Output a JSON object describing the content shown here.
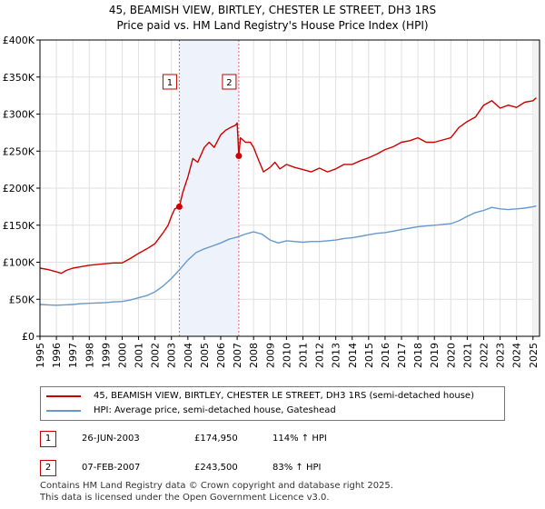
{
  "chart_data": {
    "type": "line",
    "title": "45, BEAMISH VIEW, BIRTLEY, CHESTER LE STREET, DH3 1RS",
    "subtitle": "Price paid vs. HM Land Registry's House Price Index (HPI)",
    "xlim": [
      1995,
      2025.4
    ],
    "ylim": [
      0,
      400000
    ],
    "yticks": [
      0,
      50000,
      100000,
      150000,
      200000,
      250000,
      300000,
      350000,
      400000
    ],
    "ytick_labels": [
      "£0",
      "£50K",
      "£100K",
      "£150K",
      "£200K",
      "£250K",
      "£300K",
      "£350K",
      "£400K"
    ],
    "xticks": [
      "1995",
      "1996",
      "1997",
      "1998",
      "1999",
      "2000",
      "2001",
      "2002",
      "2003",
      "2004",
      "2005",
      "2006",
      "2007",
      "2008",
      "2009",
      "2010",
      "2011",
      "2012",
      "2013",
      "2014",
      "2015",
      "2016",
      "2017",
      "2018",
      "2019",
      "2020",
      "2021",
      "2022",
      "2023",
      "2024",
      "2025"
    ],
    "grid": true,
    "series": [
      {
        "name": "45, BEAMISH VIEW, BIRTLEY, CHESTER LE STREET, DH3 1RS (semi-detached house)",
        "color": "#cc0000",
        "x": [
          1995.0,
          1995.5,
          1996.0,
          1996.3,
          1996.6,
          1997.0,
          1997.5,
          1998.0,
          1998.5,
          1999.0,
          1999.5,
          2000.0,
          2000.5,
          2001.0,
          2001.5,
          2002.0,
          2002.5,
          2002.8,
          2003.0,
          2003.2,
          2003.48,
          2003.7,
          2004.0,
          2004.3,
          2004.6,
          2005.0,
          2005.3,
          2005.6,
          2006.0,
          2006.3,
          2006.6,
          2006.9,
          2007.0,
          2007.1,
          2007.2,
          2007.5,
          2007.8,
          2008.0,
          2008.3,
          2008.6,
          2009.0,
          2009.3,
          2009.6,
          2010.0,
          2010.5,
          2011.0,
          2011.5,
          2012.0,
          2012.5,
          2013.0,
          2013.5,
          2014.0,
          2014.5,
          2015.0,
          2015.5,
          2016.0,
          2016.5,
          2017.0,
          2017.5,
          2018.0,
          2018.5,
          2019.0,
          2019.5,
          2020.0,
          2020.5,
          2021.0,
          2021.5,
          2022.0,
          2022.5,
          2023.0,
          2023.5,
          2024.0,
          2024.5,
          2025.0,
          2025.2
        ],
        "values": [
          92000,
          90000,
          87000,
          85000,
          89000,
          92000,
          94000,
          96000,
          97000,
          98000,
          99000,
          99000,
          105000,
          112000,
          118000,
          125000,
          140000,
          150000,
          162000,
          172000,
          174950,
          195000,
          215000,
          240000,
          235000,
          255000,
          262000,
          255000,
          272000,
          278000,
          282000,
          285000,
          288000,
          243500,
          268000,
          262000,
          262000,
          255000,
          238000,
          222000,
          228000,
          235000,
          226000,
          232000,
          228000,
          225000,
          222000,
          227000,
          222000,
          226000,
          232000,
          232000,
          237000,
          241000,
          246000,
          252000,
          256000,
          262000,
          264000,
          268000,
          262000,
          262000,
          265000,
          268000,
          282000,
          290000,
          296000,
          312000,
          318000,
          308000,
          312000,
          309000,
          316000,
          318000,
          322000
        ]
      },
      {
        "name": "HPI: Average price, semi-detached house, Gateshead",
        "color": "#6699cc",
        "x": [
          1995.0,
          1995.5,
          1996.0,
          1996.5,
          1997.0,
          1997.5,
          1998.0,
          1998.5,
          1999.0,
          1999.5,
          2000.0,
          2000.5,
          2001.0,
          2001.5,
          2002.0,
          2002.5,
          2003.0,
          2003.5,
          2004.0,
          2004.5,
          2005.0,
          2005.5,
          2006.0,
          2006.5,
          2007.0,
          2007.5,
          2008.0,
          2008.5,
          2009.0,
          2009.5,
          2010.0,
          2010.5,
          2011.0,
          2011.5,
          2012.0,
          2012.5,
          2013.0,
          2013.5,
          2014.0,
          2014.5,
          2015.0,
          2015.5,
          2016.0,
          2016.5,
          2017.0,
          2017.5,
          2018.0,
          2018.5,
          2019.0,
          2019.5,
          2020.0,
          2020.5,
          2021.0,
          2021.5,
          2022.0,
          2022.5,
          2023.0,
          2023.5,
          2024.0,
          2024.5,
          2025.0,
          2025.2
        ],
        "values": [
          43000,
          42500,
          42000,
          42500,
          43000,
          44000,
          44500,
          45000,
          45500,
          46500,
          47000,
          49000,
          52000,
          55000,
          60000,
          68000,
          78000,
          90000,
          103000,
          113000,
          118000,
          122000,
          126000,
          131000,
          134000,
          138000,
          141000,
          138000,
          130000,
          126000,
          129000,
          128000,
          127000,
          128000,
          128000,
          129000,
          130000,
          132000,
          133000,
          135000,
          137000,
          139000,
          140000,
          142000,
          144000,
          146000,
          148000,
          149000,
          150000,
          151000,
          152000,
          156000,
          162000,
          167000,
          170000,
          174000,
          172000,
          171000,
          172000,
          173000,
          175000,
          176000
        ]
      }
    ],
    "markers": [
      {
        "label": "1",
        "x": 2003.48,
        "y": 174950
      },
      {
        "label": "2",
        "x": 2007.1,
        "y": 243500
      }
    ]
  },
  "legend": {
    "property_label": "45, BEAMISH VIEW, BIRTLEY, CHESTER LE STREET, DH3 1RS (semi-detached house)",
    "hpi_label": "HPI: Average price, semi-detached house, Gateshead"
  },
  "transactions": [
    {
      "num": "1",
      "date": "26-JUN-2003",
      "price": "£174,950",
      "hpi": "114% ↑ HPI"
    },
    {
      "num": "2",
      "date": "07-FEB-2007",
      "price": "£243,500",
      "hpi": "83% ↑ HPI"
    }
  ],
  "footer": {
    "line1": "Contains HM Land Registry data © Crown copyright and database right 2025.",
    "line2": "This data is licensed under the Open Government Licence v3.0."
  }
}
